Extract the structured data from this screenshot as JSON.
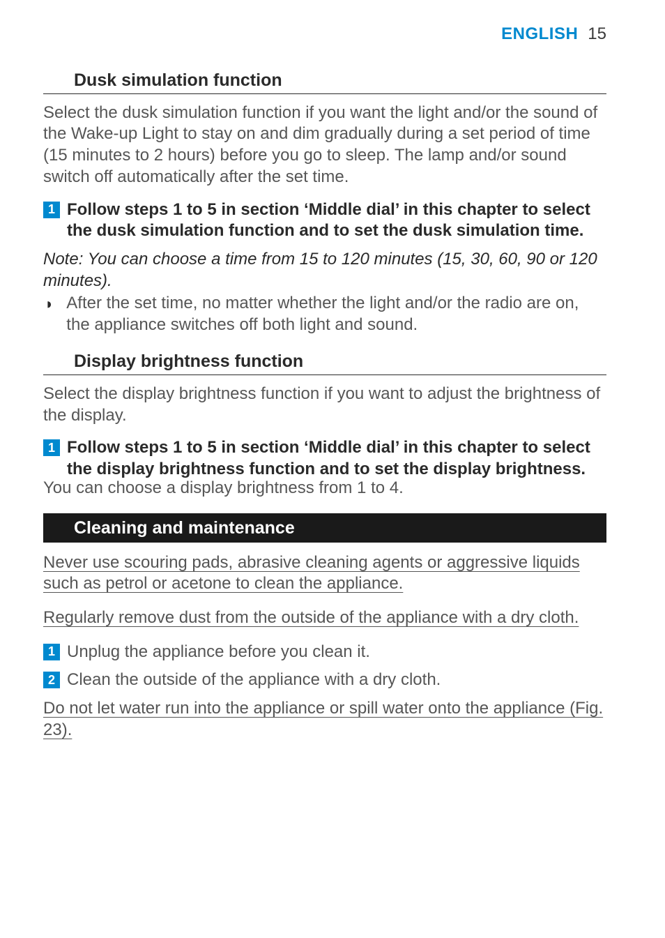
{
  "colors": {
    "accent": "#0089cf",
    "band_bg": "#1a1a1a",
    "band_text": "#ffffff",
    "body_text": "#565656",
    "heading_text": "#2a2a2a",
    "rule": "#2a2a2a",
    "page_bg": "#ffffff",
    "step_num_bg": "#0089cf"
  },
  "header": {
    "language": "ENGLISH",
    "page_number": "15"
  },
  "sections": {
    "dusk": {
      "heading": "Dusk simulation function",
      "intro": "Select the dusk simulation function if you want the light and/or the sound of the Wake-up Light to stay on and dim gradually during a set period of time (15 minutes to 2 hours) before you go to sleep. The lamp and/or sound switch off automatically after the set time.",
      "step1": "Follow steps 1 to 5 in section ‘Middle dial’ in this chapter to select the dusk simulation function and to set the dusk simulation time.",
      "note": "Note: You can choose a time from 15 to 120 minutes (15, 30, 60, 90 or 120 minutes).",
      "bullet": "After the set time, no matter whether the light and/or the radio are on, the appliance switches off both light and sound."
    },
    "brightness": {
      "heading": "Display brightness function",
      "intro": "Select the display brightness function if you want to adjust the brightness of the display.",
      "step1": "Follow steps 1 to 5 in section ‘Middle dial’ in this chapter to select the display brightness function and to set the display brightness.",
      "trailing": "You can choose a display brightness from 1 to 4."
    },
    "cleaning": {
      "heading": "Cleaning and maintenance",
      "warn1": "Never use scouring pads, abrasive cleaning agents or aggressive liquids such as petrol or acetone to clean the appliance.",
      "warn2": "Regularly remove dust from the outside of the appliance with a dry cloth.",
      "step1": "Unplug the appliance before you clean it.",
      "step2": "Clean the outside of the appliance with a dry cloth.",
      "warn3": "Do not let water run into the appliance or spill water onto the appliance (Fig. 23)."
    }
  }
}
